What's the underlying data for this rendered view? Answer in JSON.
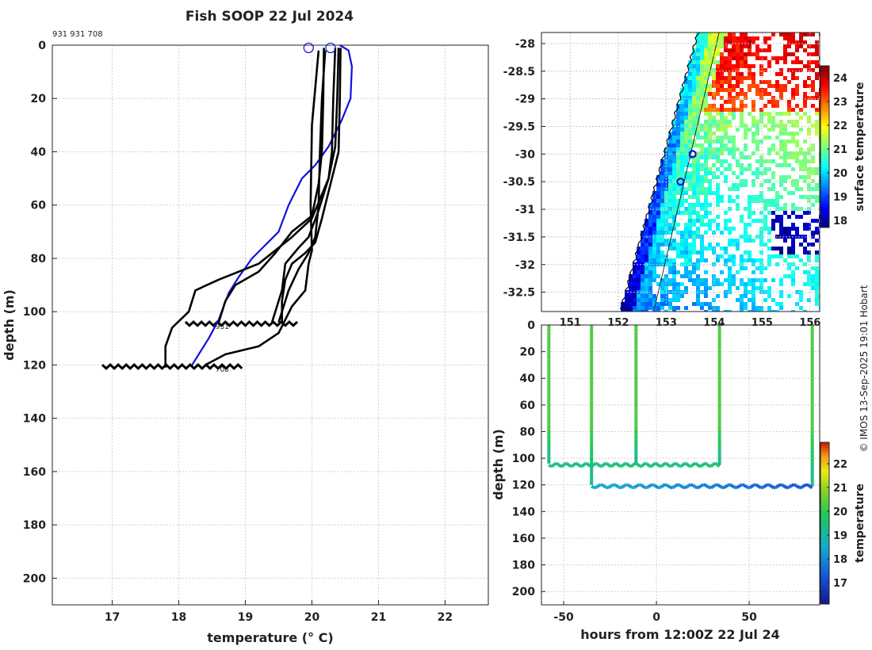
{
  "title": "Fish SOOP 22 Jul 2024",
  "watermark": "© IMOS 13-Sep-2025 19:01 Hobart",
  "chart_data": [
    {
      "name": "temperature-profiles",
      "type": "line",
      "annotation": "931 931 708",
      "xlabel": "temperature (° C)",
      "ylabel": "depth (m)",
      "xlim": [
        16.1,
        22.65
      ],
      "ylim": [
        210,
        0
      ],
      "xticks": [
        17,
        18,
        19,
        20,
        21,
        22
      ],
      "yticks": [
        0,
        20,
        40,
        60,
        80,
        100,
        120,
        140,
        160,
        180,
        200
      ],
      "marker_labels": [
        "931",
        "708"
      ],
      "colors": {
        "profiles": "#000000",
        "model": "#1010dd",
        "markers": "#1a1aee"
      },
      "surface_markers": [
        {
          "temperature": 19.95,
          "depth": 1
        },
        {
          "temperature": 20.28,
          "depth": 1
        }
      ],
      "series": [
        {
          "name": "model",
          "color": "#1010dd",
          "points": [
            [
              20.42,
              0
            ],
            [
              20.55,
              2
            ],
            [
              20.6,
              8
            ],
            [
              20.58,
              20
            ],
            [
              20.45,
              28
            ],
            [
              20.25,
              38
            ],
            [
              20.05,
              45
            ],
            [
              19.85,
              50
            ],
            [
              19.65,
              60
            ],
            [
              19.5,
              70
            ],
            [
              19.1,
              80
            ],
            [
              18.9,
              87
            ],
            [
              18.75,
              93
            ],
            [
              18.6,
              103
            ],
            [
              18.45,
              110
            ],
            [
              18.2,
              120
            ]
          ]
        },
        {
          "name": "profile-1",
          "color": "#000000",
          "points": [
            [
              20.35,
              1
            ],
            [
              20.32,
              20
            ],
            [
              20.3,
              40
            ],
            [
              20.25,
              50
            ],
            [
              20.0,
              65
            ],
            [
              19.7,
              72
            ],
            [
              19.2,
              82
            ],
            [
              18.6,
              88
            ],
            [
              18.25,
              92
            ],
            [
              18.15,
              100
            ],
            [
              17.9,
              106
            ],
            [
              17.8,
              113
            ],
            [
              17.8,
              121
            ]
          ]
        },
        {
          "name": "profile-2",
          "color": "#000000",
          "points": [
            [
              20.18,
              1
            ],
            [
              20.17,
              20
            ],
            [
              20.15,
              40
            ],
            [
              20.1,
              52
            ],
            [
              20.0,
              64
            ],
            [
              19.7,
              70
            ],
            [
              19.45,
              78
            ],
            [
              19.2,
              85
            ],
            [
              18.85,
              90
            ],
            [
              18.7,
              96
            ],
            [
              18.6,
              104
            ]
          ]
        },
        {
          "name": "profile-3",
          "color": "#000000",
          "points": [
            [
              20.4,
              1
            ],
            [
              20.38,
              20
            ],
            [
              20.35,
              38
            ],
            [
              20.25,
              50
            ],
            [
              20.1,
              62
            ],
            [
              19.95,
              72
            ],
            [
              19.8,
              76
            ],
            [
              19.6,
              82
            ],
            [
              19.55,
              92
            ],
            [
              19.45,
              100
            ],
            [
              19.4,
              104
            ]
          ]
        },
        {
          "name": "profile-4",
          "color": "#000000",
          "points": [
            [
              20.43,
              1
            ],
            [
              20.42,
              20
            ],
            [
              20.4,
              40
            ],
            [
              20.28,
              52
            ],
            [
              20.15,
              65
            ],
            [
              20.05,
              74
            ],
            [
              19.9,
              78
            ],
            [
              19.7,
              82
            ],
            [
              19.6,
              88
            ],
            [
              19.55,
              96
            ],
            [
              19.55,
              104
            ]
          ]
        },
        {
          "name": "profile-5",
          "color": "#000000",
          "points": [
            [
              20.1,
              2
            ],
            [
              20.0,
              30
            ],
            [
              19.98,
              60
            ],
            [
              20.0,
              77
            ],
            [
              19.95,
              82
            ],
            [
              19.9,
              92
            ],
            [
              19.7,
              98
            ],
            [
              19.5,
              108
            ],
            [
              19.2,
              113
            ],
            [
              18.7,
              116
            ],
            [
              18.4,
              120
            ]
          ]
        },
        {
          "name": "profile-6",
          "color": "#000000",
          "points": [
            [
              20.2,
              2
            ],
            [
              20.15,
              20
            ],
            [
              20.12,
              40
            ],
            [
              20.1,
              60
            ],
            [
              20.05,
              72
            ],
            [
              19.95,
              78
            ],
            [
              19.8,
              84
            ],
            [
              19.65,
              92
            ],
            [
              19.5,
              104
            ]
          ]
        }
      ]
    },
    {
      "name": "sst-map",
      "type": "heatmap",
      "xlim": [
        150.4,
        156.2
      ],
      "ylim": [
        -32.85,
        -27.8
      ],
      "xticks": [
        151,
        152,
        153,
        154,
        155,
        156
      ],
      "yticks": [
        -28,
        -28.5,
        -29,
        -29.5,
        -30,
        -30.5,
        -31,
        -31.5,
        -32,
        -32.5
      ],
      "colorbar_label": "surface temperature",
      "colorbar_ticks": [
        18,
        19,
        20,
        21,
        22,
        23,
        24
      ],
      "colorbar_range": [
        17.7,
        24.5
      ],
      "station_markers": [
        {
          "lon": 153.55,
          "lat": -30.0
        },
        {
          "lon": 153.3,
          "lat": -30.5
        }
      ]
    },
    {
      "name": "depth-time",
      "type": "scatter",
      "xlabel": "hours from 12:00Z 22 Jul 24",
      "ylabel": "depth (m)",
      "xlim": [
        -62,
        88
      ],
      "ylim": [
        210,
        0
      ],
      "xticks": [
        -50,
        0,
        50
      ],
      "yticks": [
        0,
        20,
        40,
        60,
        80,
        100,
        120,
        140,
        160,
        180,
        200
      ],
      "colorbar_label": "temperature",
      "colorbar_ticks": [
        17,
        18,
        19,
        20,
        21,
        22
      ],
      "colorbar_range": [
        16.1,
        22.9
      ],
      "casts": [
        {
          "hour": -58,
          "bottom": 104
        },
        {
          "hour": -35,
          "bottom": 120
        },
        {
          "hour": -11,
          "bottom": 104
        },
        {
          "hour": 34,
          "bottom": 105
        },
        {
          "hour": 84,
          "bottom": 121
        }
      ],
      "bottom_tracks": [
        {
          "from": -58,
          "to": 34,
          "depth": 105,
          "temp_start": 19.4,
          "temp_end": 19.5
        },
        {
          "from": -35,
          "to": 84,
          "depth": 121,
          "temp_start": 18.6,
          "temp_end": 17.2
        }
      ]
    }
  ]
}
